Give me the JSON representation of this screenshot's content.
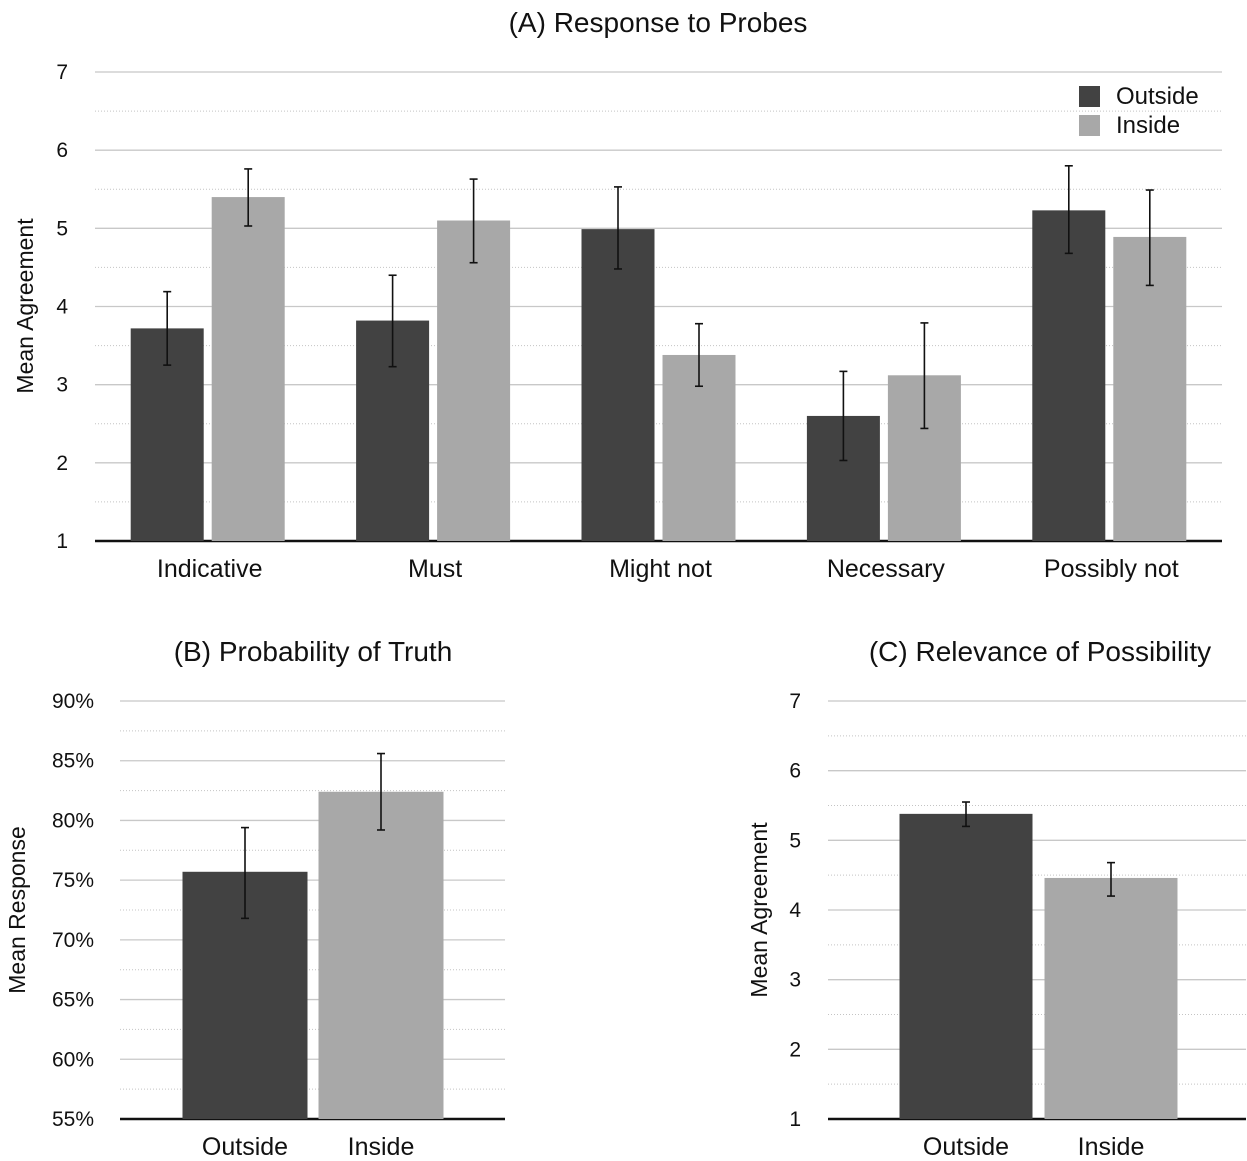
{
  "colors": {
    "outside": "#424242",
    "inside": "#a8a8a8"
  },
  "legend": {
    "outside": "Outside",
    "inside": "Inside",
    "placement": "top-right"
  },
  "chart_data": [
    {
      "type": "bar",
      "title": "(A) Response to Probes",
      "ylabel": "Mean Agreement",
      "xlabel": "",
      "ylim": [
        1,
        7
      ],
      "yticks": [
        "1",
        "2",
        "3",
        "4",
        "5",
        "6",
        "7"
      ],
      "categories": [
        "Indicative",
        "Must",
        "Might not",
        "Necessary",
        "Possibly not"
      ],
      "series": [
        {
          "name": "Outside",
          "values": [
            3.72,
            3.82,
            4.99,
            2.6,
            5.23
          ],
          "err_low": [
            3.25,
            3.23,
            4.48,
            2.03,
            4.68
          ],
          "err_high": [
            4.19,
            4.4,
            5.53,
            3.17,
            5.8
          ]
        },
        {
          "name": "Inside",
          "values": [
            5.4,
            5.1,
            3.38,
            3.12,
            4.89
          ],
          "err_low": [
            5.03,
            4.56,
            2.98,
            2.44,
            4.27
          ],
          "err_high": [
            5.76,
            5.63,
            3.78,
            3.79,
            5.49
          ]
        }
      ],
      "grid": true
    },
    {
      "type": "bar",
      "title": "(B) Probability of Truth",
      "ylabel": "Mean Response",
      "xlabel": "",
      "ylim": [
        55,
        90
      ],
      "yticks": [
        "55%",
        "60%",
        "65%",
        "70%",
        "75%",
        "80%",
        "85%",
        "90%"
      ],
      "categories": [
        "Outside",
        "Inside"
      ],
      "values": [
        75.7,
        82.4
      ],
      "err_low": [
        71.8,
        79.2
      ],
      "err_high": [
        79.4,
        85.6
      ],
      "grid": true
    },
    {
      "type": "bar",
      "title": "(C) Relevance of Possibility",
      "ylabel": "Mean Agreement",
      "xlabel": "",
      "ylim": [
        1,
        7
      ],
      "yticks": [
        "1",
        "2",
        "3",
        "4",
        "5",
        "6",
        "7"
      ],
      "categories": [
        "Outside",
        "Inside"
      ],
      "values": [
        5.38,
        4.46
      ],
      "err_low": [
        5.2,
        4.2
      ],
      "err_high": [
        5.55,
        4.68
      ],
      "grid": true
    }
  ]
}
